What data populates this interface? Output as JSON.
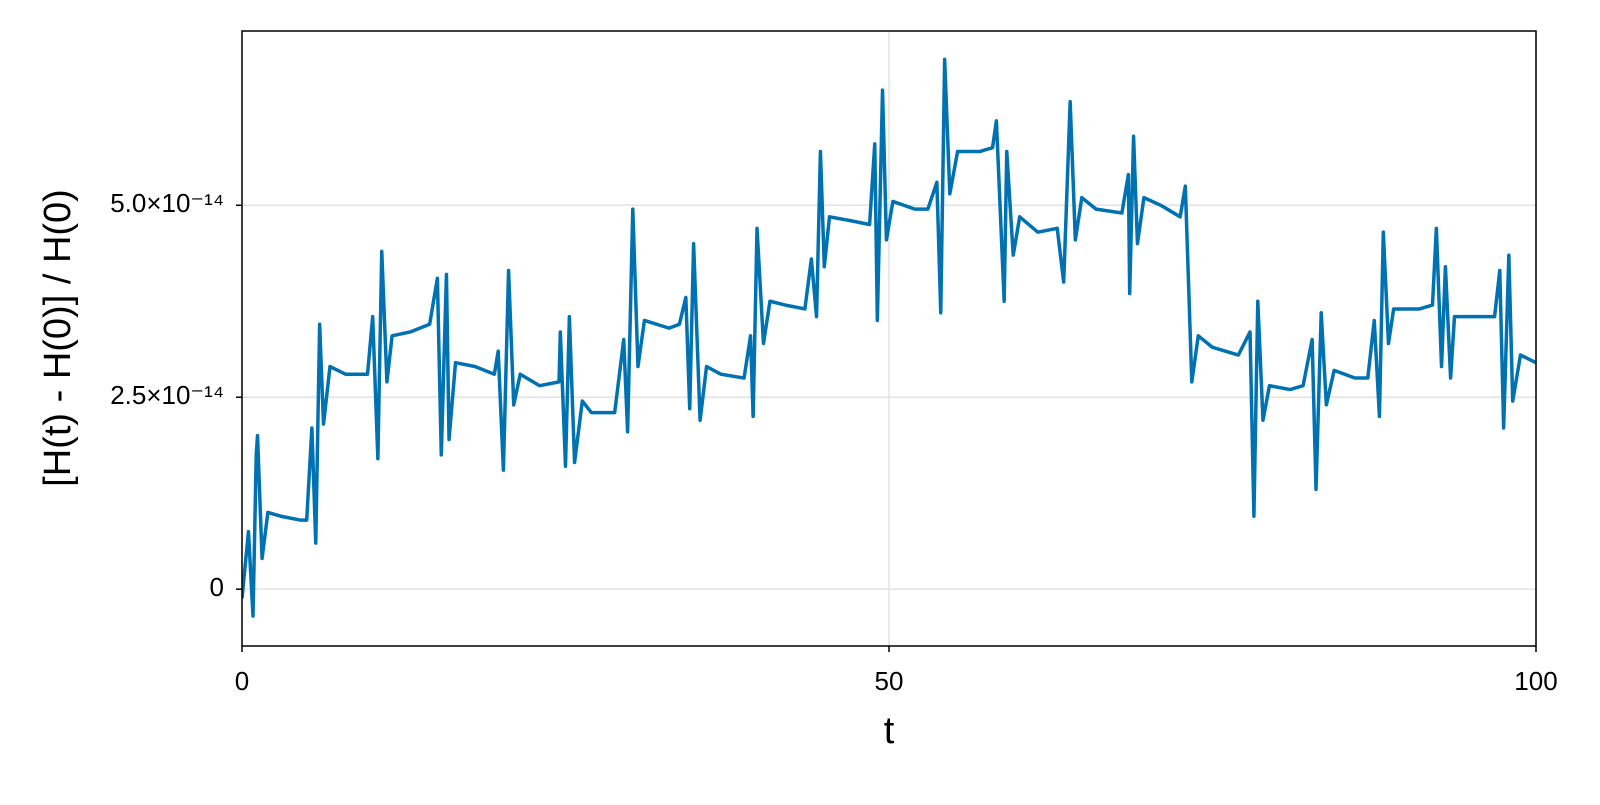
{
  "chart_data": {
    "type": "line",
    "xlabel": "t",
    "ylabel": "[H(t) - H(0)] / H(0)",
    "color": "#0072b2",
    "grid": true,
    "xlim": [
      0,
      100
    ],
    "xticks": [
      0,
      50,
      100
    ],
    "ylim": [
      -7.4e-15,
      7.27e-14
    ],
    "yticks": [
      0,
      {
        "value": 2.5e-14,
        "label": "2.5×10⁻¹⁴"
      },
      {
        "value": 5e-14,
        "label": "5.0×10⁻¹⁴"
      }
    ],
    "x": [
      0,
      0.5,
      0.85,
      1.1,
      1.2,
      1.55,
      2,
      3,
      4.5,
      5.0,
      5.4,
      5.7,
      6.0,
      6.3,
      6.8,
      8,
      9.7,
      10.1,
      10.5,
      10.8,
      11.2,
      11.6,
      13,
      14.5,
      15.1,
      15.4,
      15.8,
      16.0,
      16.5,
      18,
      19.5,
      19.8,
      20.2,
      20.6,
      21.0,
      21.5,
      23,
      24.5,
      24.6,
      25.0,
      25.3,
      25.7,
      26.3,
      27,
      28.8,
      29.5,
      29.8,
      30.2,
      30.6,
      31.1,
      33,
      33.8,
      34.3,
      34.6,
      34.9,
      35.4,
      35.9,
      37,
      38.8,
      39.3,
      39.5,
      39.8,
      40.3,
      40.8,
      42,
      43.5,
      44.0,
      44.4,
      44.7,
      45.0,
      45.4,
      47,
      48.5,
      48.9,
      49.1,
      49.5,
      49.8,
      50.3,
      52,
      53,
      53.7,
      54.0,
      54.3,
      54.7,
      55.3,
      57,
      58,
      58.3,
      58.9,
      59.1,
      59.6,
      60.1,
      61.5,
      63,
      63.5,
      64.0,
      64.4,
      64.9,
      66,
      68,
      68.5,
      68.6,
      68.9,
      69.2,
      69.7,
      71,
      72.5,
      72.9,
      73.4,
      73.9,
      75,
      77,
      77.9,
      78.2,
      78.5,
      78.9,
      79.4,
      81,
      82,
      82.7,
      83.0,
      83.4,
      83.8,
      84.4,
      86,
      87,
      87.5,
      87.9,
      88.2,
      88.6,
      89.0,
      91,
      92,
      92.3,
      92.7,
      93.0,
      93.4,
      93.7,
      95.5,
      96.8,
      97.2,
      97.5,
      97.9,
      98.2,
      98.8,
      100
    ],
    "values": [
      -1.2e-15,
      7.5e-15,
      -3.5e-15,
      1.75e-14,
      2e-14,
      4e-15,
      1e-14,
      9.5e-15,
      9e-15,
      9e-15,
      2.1e-14,
      6e-15,
      3.45e-14,
      2.15e-14,
      2.9e-14,
      2.8e-14,
      2.8e-14,
      3.55e-14,
      1.7e-14,
      4.4e-14,
      2.7e-14,
      3.3e-14,
      3.35e-14,
      3.45e-14,
      4.05e-14,
      1.75e-14,
      4.1e-14,
      1.95e-14,
      2.95e-14,
      2.9e-14,
      2.8e-14,
      3.1e-14,
      1.55e-14,
      4.15e-14,
      2.4e-14,
      2.8e-14,
      2.65e-14,
      2.7e-14,
      3.35e-14,
      1.6e-14,
      3.55e-14,
      1.65e-14,
      2.45e-14,
      2.3e-14,
      2.3e-14,
      3.25e-14,
      2.05e-14,
      4.95e-14,
      2.9e-14,
      3.5e-14,
      3.4e-14,
      3.45e-14,
      3.8e-14,
      2.35e-14,
      4.5e-14,
      2.2e-14,
      2.9e-14,
      2.8e-14,
      2.75e-14,
      3.3e-14,
      2.25e-14,
      4.7e-14,
      3.2e-14,
      3.75e-14,
      3.7e-14,
      3.65e-14,
      4.3e-14,
      3.55e-14,
      5.7e-14,
      4.2e-14,
      4.85e-14,
      4.8e-14,
      4.75e-14,
      5.8e-14,
      3.5e-14,
      6.5e-14,
      4.55e-14,
      5.05e-14,
      4.95e-14,
      4.95e-14,
      5.3e-14,
      3.6e-14,
      6.9e-14,
      5.15e-14,
      5.7e-14,
      5.7e-14,
      5.75e-14,
      6.1e-14,
      3.75e-14,
      5.7e-14,
      4.35e-14,
      4.85e-14,
      4.65e-14,
      4.7e-14,
      4e-14,
      6.35e-14,
      4.55e-14,
      5.1e-14,
      4.95e-14,
      4.9e-14,
      5.4e-14,
      3.85e-14,
      5.9e-14,
      4.5e-14,
      5.1e-14,
      5e-14,
      4.85e-14,
      5.25e-14,
      2.7e-14,
      3.3e-14,
      3.15e-14,
      3.05e-14,
      3.35e-14,
      9.5e-15,
      3.75e-14,
      2.2e-14,
      2.65e-14,
      2.6e-14,
      2.65e-14,
      3.25e-14,
      1.3e-14,
      3.6e-14,
      2.4e-14,
      2.85e-14,
      2.75e-14,
      2.75e-14,
      3.5e-14,
      2.25e-14,
      4.65e-14,
      3.2e-14,
      3.65e-14,
      3.65e-14,
      3.7e-14,
      4.7e-14,
      2.9e-14,
      4.2e-14,
      2.75e-14,
      3.55e-14,
      3.55e-14,
      3.55e-14,
      4.15e-14,
      2.1e-14,
      4.35e-14,
      2.45e-14,
      3.05e-14,
      2.95e-14
    ]
  }
}
